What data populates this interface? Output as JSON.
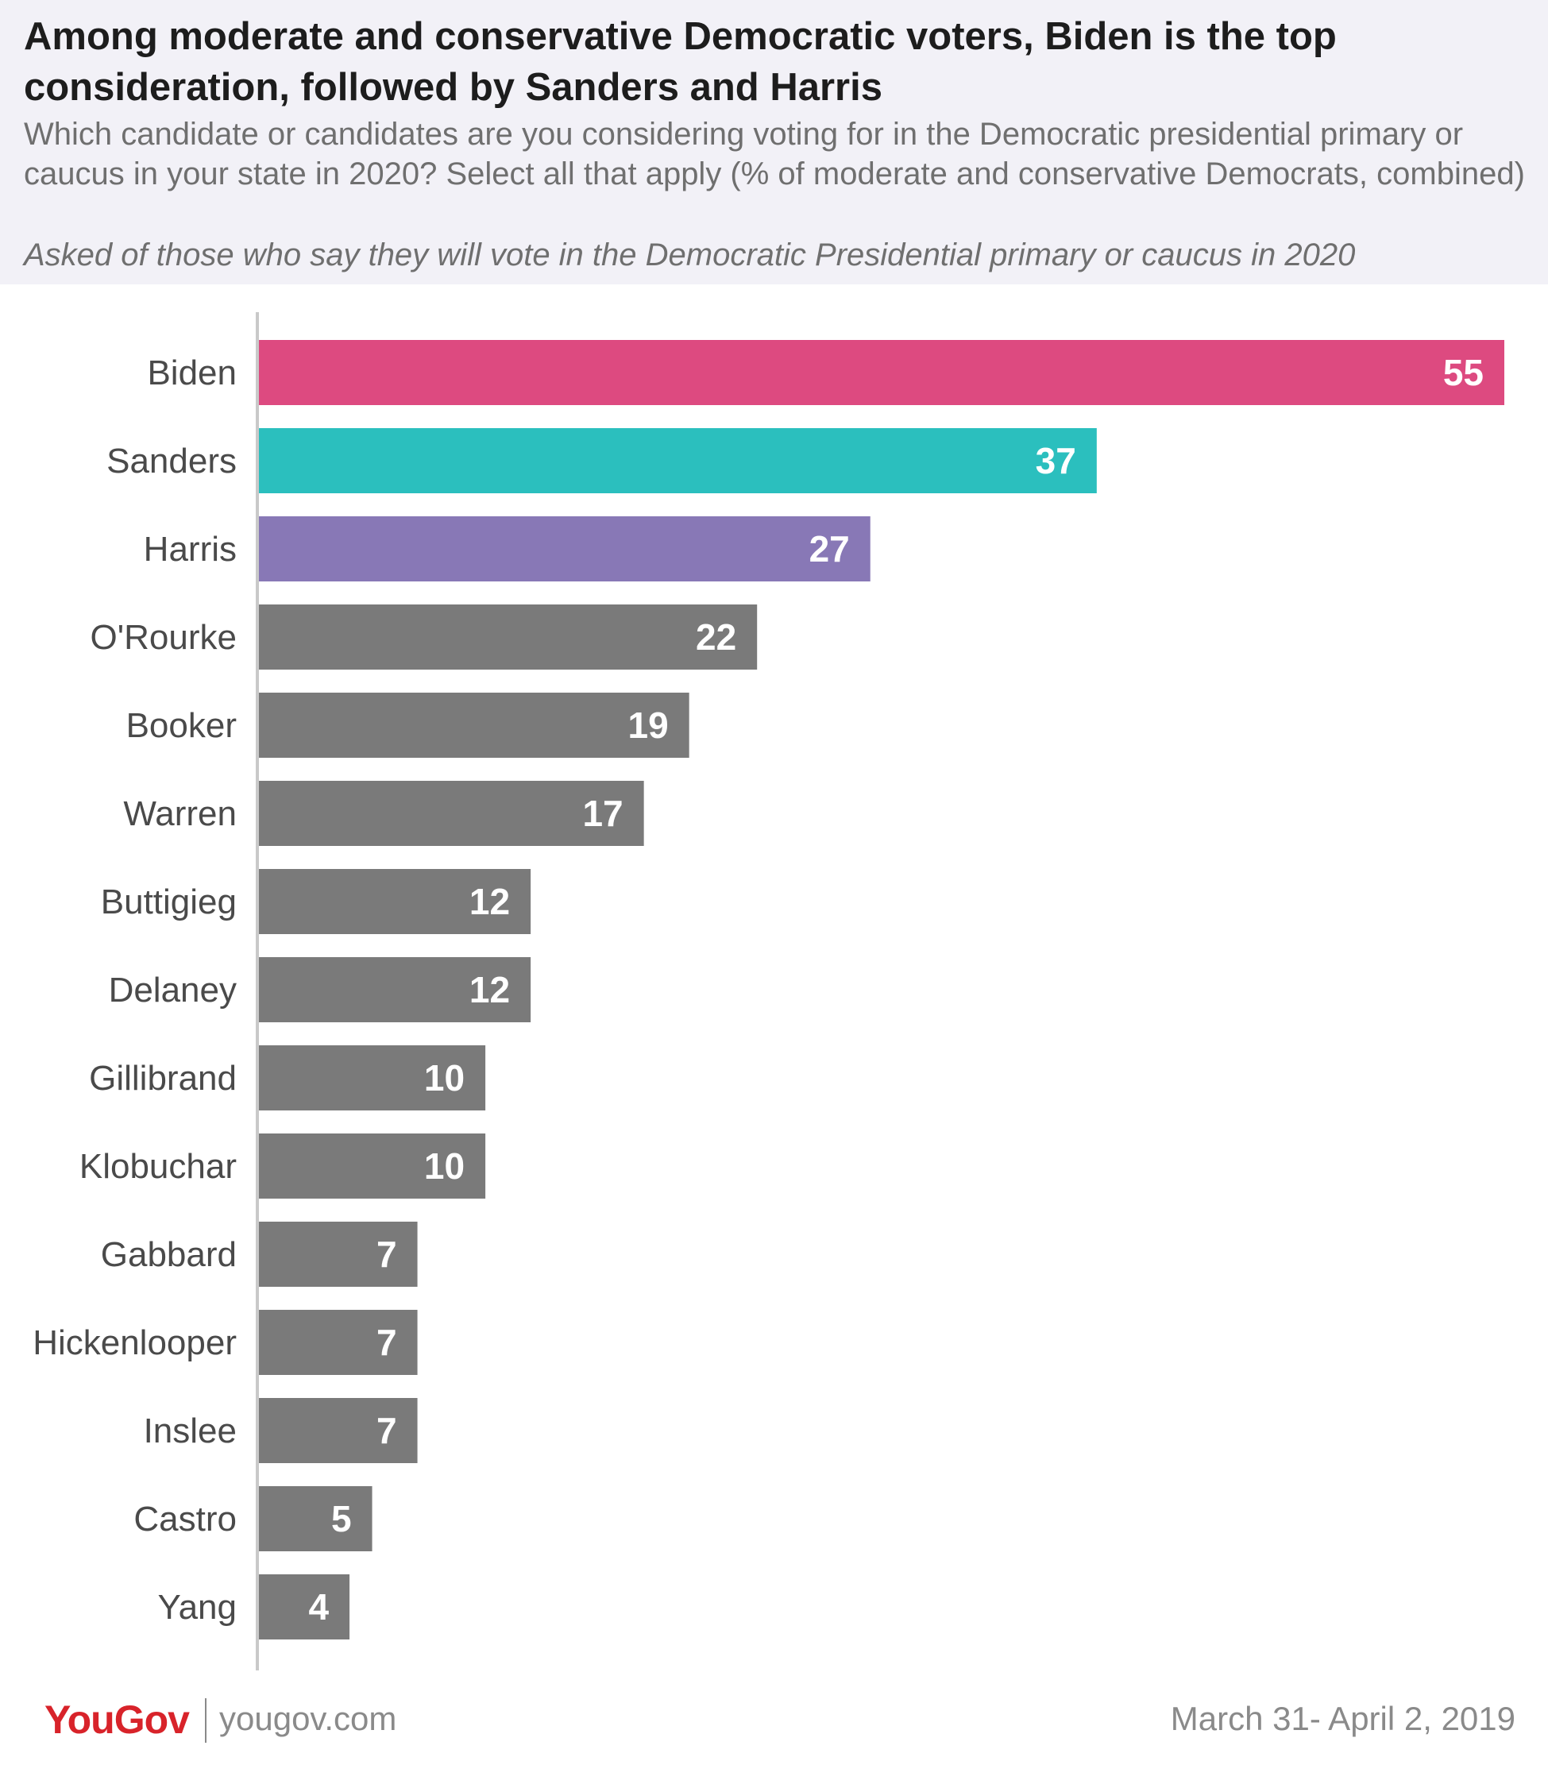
{
  "header": {
    "title": "Among moderate and conservative Democratic voters, Biden is the top consideration, followed by Sanders and Harris",
    "subtitle": "Which candidate or candidates are you considering voting for in the Democratic presidential primary or caucus in your state in 2020? Select all that apply (% of moderate and conservative Democrats, combined)",
    "note": "Asked of those who say they will vote in the Democratic Presidential primary or caucus in 2020"
  },
  "chart_data": {
    "type": "bar",
    "orientation": "horizontal",
    "categories": [
      "Biden",
      "Sanders",
      "Harris",
      "O'Rourke",
      "Booker",
      "Warren",
      "Buttigieg",
      "Delaney",
      "Gillibrand",
      "Klobuchar",
      "Gabbard",
      "Hickenlooper",
      "Inslee",
      "Castro",
      "Yang"
    ],
    "values": [
      55,
      37,
      27,
      22,
      19,
      17,
      12,
      12,
      10,
      10,
      7,
      7,
      7,
      5,
      4
    ],
    "colors": [
      "#dd4a80",
      "#2bbfbe",
      "#8878b6",
      "#7a7a7a",
      "#7a7a7a",
      "#7a7a7a",
      "#7a7a7a",
      "#7a7a7a",
      "#7a7a7a",
      "#7a7a7a",
      "#7a7a7a",
      "#7a7a7a",
      "#7a7a7a",
      "#7a7a7a",
      "#7a7a7a"
    ],
    "xlim": [
      0,
      55
    ],
    "grid": false,
    "data_labels": true,
    "label_color": "#ffffff",
    "axis_color": "#c9c9c9",
    "category_label_color": "#4a4a4a"
  },
  "footer": {
    "logo_text": "YouGov",
    "site": "yougov.com",
    "date": "March 31- April 2, 2019",
    "brand_color": "#d8232a"
  }
}
